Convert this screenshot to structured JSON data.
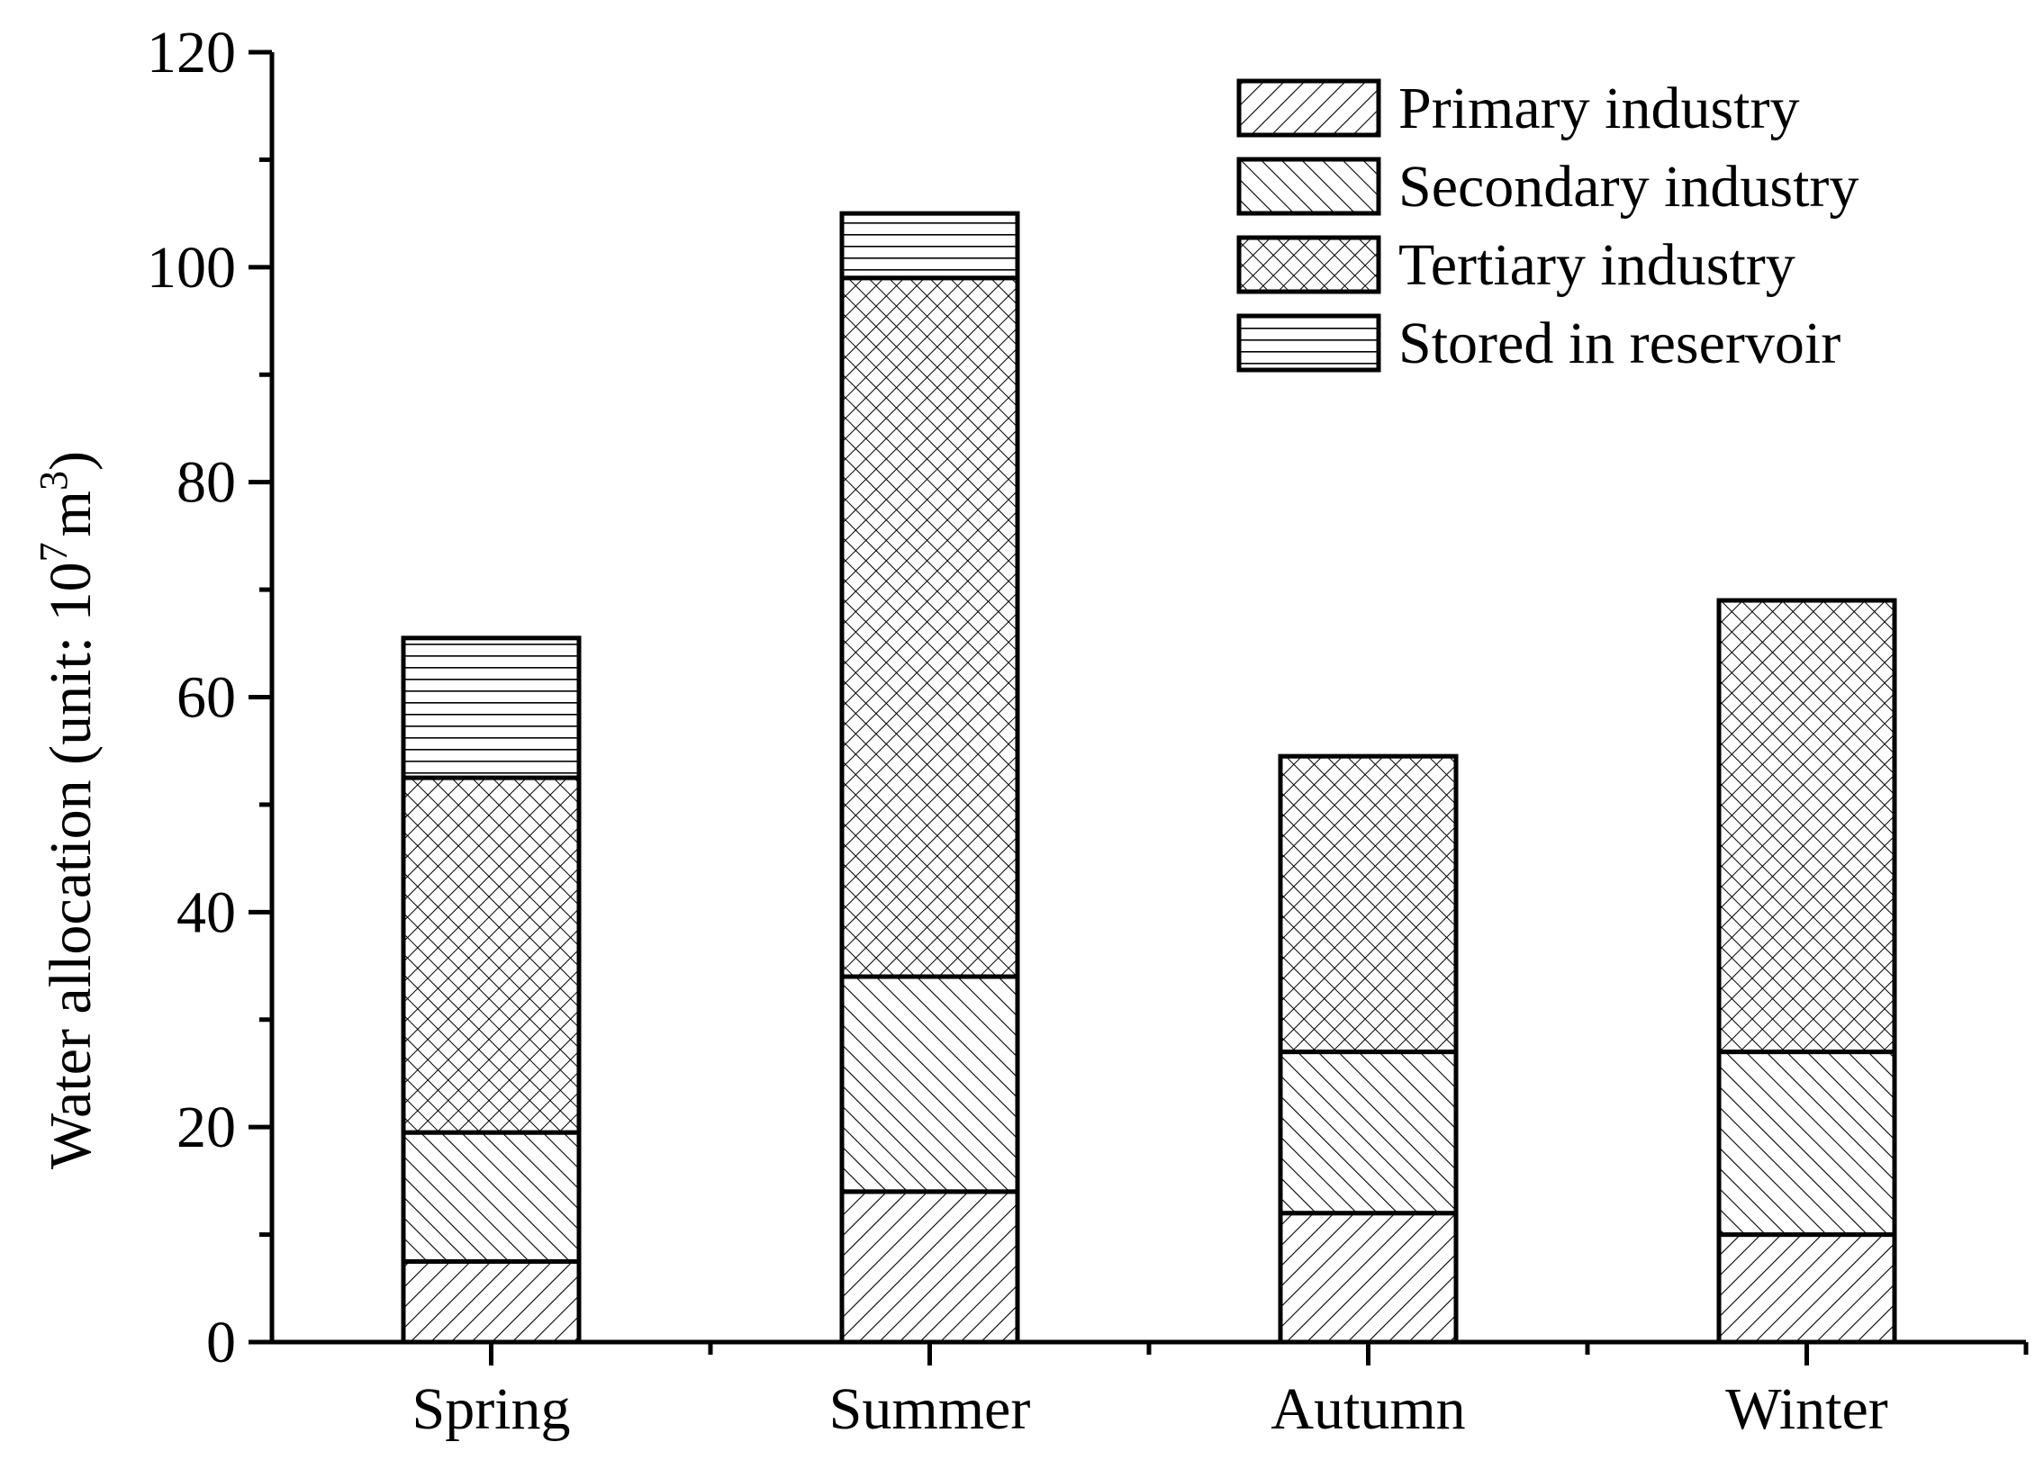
{
  "chart_data": {
    "type": "bar",
    "stacked": true,
    "categories": [
      "Spring",
      "Summer",
      "Autumn",
      "Winter"
    ],
    "series": [
      {
        "name": "Primary industry",
        "values": [
          7.5,
          14,
          12,
          10
        ],
        "pattern": "diag-right"
      },
      {
        "name": "Secondary industry",
        "values": [
          12,
          20,
          15,
          17
        ],
        "pattern": "diag-left"
      },
      {
        "name": "Tertiary industry",
        "values": [
          33,
          65,
          27.5,
          42
        ],
        "pattern": "crosshatch"
      },
      {
        "name": "Stored in reservoir",
        "values": [
          13,
          6,
          0,
          0
        ],
        "pattern": "horizontal"
      }
    ],
    "ylabel_main": "Water allocation (unit: 10",
    "ylabel_sup1": "7",
    "ylabel_mid": "m",
    "ylabel_sup2": "3",
    "ylabel_end": ")",
    "ylim": [
      0,
      120
    ],
    "yticks": [
      0,
      20,
      40,
      60,
      80,
      100,
      120
    ],
    "grid": false,
    "legend_position": "top-right",
    "colors": {
      "stroke": "#000000",
      "fill": "#ffffff"
    }
  }
}
